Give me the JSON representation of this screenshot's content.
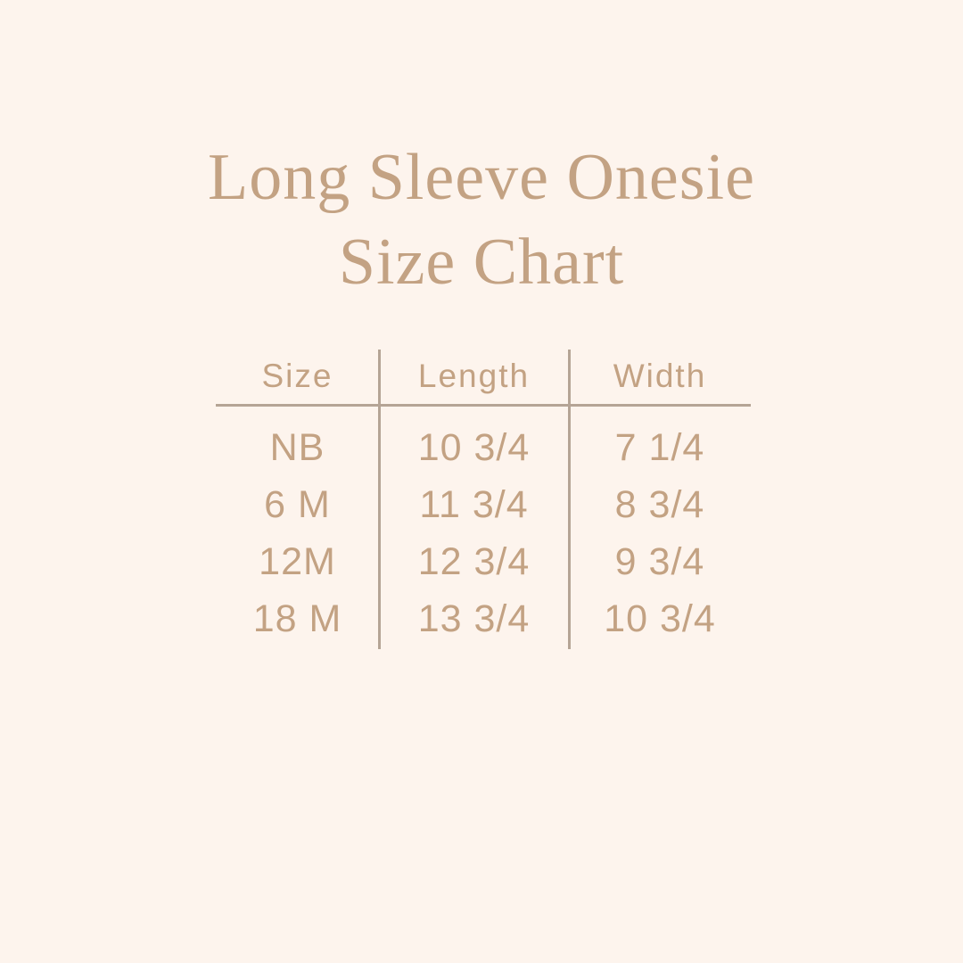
{
  "colors": {
    "bg": "#fdf4ed",
    "text": "#c3a283",
    "line": "#b5a495"
  },
  "title": {
    "line1": "Long Sleeve Onesie",
    "line2": "Size Chart"
  },
  "table": {
    "headers": [
      "Size",
      "Length",
      "Width"
    ],
    "rows": [
      [
        "NB",
        "10 3/4",
        "7 1/4"
      ],
      [
        "6 M",
        "11 3/4",
        "8 3/4"
      ],
      [
        "12M",
        "12 3/4",
        "9 3/4"
      ],
      [
        "18 M",
        "13 3/4",
        "10 3/4"
      ]
    ]
  },
  "chart_data": {
    "type": "table",
    "title": "Long Sleeve Onesie Size Chart",
    "columns": [
      "Size",
      "Length",
      "Width"
    ],
    "rows": [
      {
        "size": "NB",
        "length": "10 3/4",
        "width": "7 1/4"
      },
      {
        "size": "6 M",
        "length": "11 3/4",
        "width": "8 3/4"
      },
      {
        "size": "12M",
        "length": "12 3/4",
        "width": "9 3/4"
      },
      {
        "size": "18 M",
        "length": "13 3/4",
        "width": "10 3/4"
      }
    ]
  }
}
